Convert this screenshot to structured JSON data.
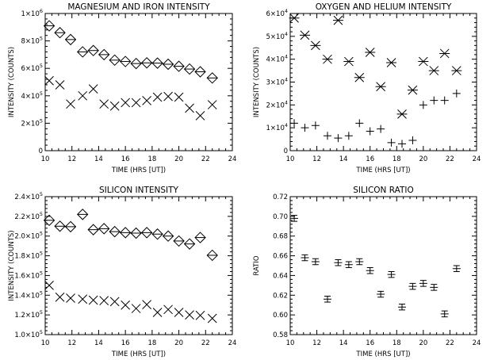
{
  "chart_data": [
    {
      "type": "scatter",
      "title": "MAGNESIUM AND IRON INTENSITY",
      "xlabel": "TIME (HRS [UT])",
      "ylabel": "INTENSITY (COUNTS)",
      "xlim": [
        10,
        24
      ],
      "ylim": [
        0,
        1000000
      ],
      "xticks": [
        "10",
        "12",
        "14",
        "16",
        "18",
        "20",
        "22",
        "24"
      ],
      "yticks": [
        "0",
        "2×10",
        "4×10",
        "6×10",
        "8×10",
        "1×10"
      ],
      "ytick_exponents": [
        "",
        "5",
        "5",
        "5",
        "5",
        "6"
      ],
      "series": [
        {
          "marker": "diamond",
          "x": [
            10.3,
            11.1,
            11.9,
            12.8,
            13.6,
            14.4,
            15.2,
            16.0,
            16.8,
            17.6,
            18.4,
            19.2,
            20.0,
            20.8,
            21.6,
            22.5
          ],
          "y": [
            910000,
            860000,
            810000,
            720000,
            730000,
            700000,
            660000,
            650000,
            635000,
            640000,
            638000,
            630000,
            615000,
            595000,
            575000,
            530000
          ]
        },
        {
          "marker": "x",
          "x": [
            10.3,
            11.1,
            11.9,
            12.8,
            13.6,
            14.4,
            15.2,
            16.0,
            16.8,
            17.6,
            18.4,
            19.2,
            20.0,
            20.8,
            21.6,
            22.5
          ],
          "y": [
            510000,
            480000,
            340000,
            400000,
            450000,
            340000,
            325000,
            350000,
            350000,
            365000,
            390000,
            395000,
            390000,
            310000,
            255000,
            335000
          ]
        }
      ]
    },
    {
      "type": "scatter",
      "title": "OXYGEN AND HELIUM INTENSITY",
      "xlabel": "TIME (HRS [UT])",
      "ylabel": "INTENSITY (COUNTS)",
      "xlim": [
        10,
        24
      ],
      "ylim": [
        0,
        60000
      ],
      "xticks": [
        "10",
        "12",
        "14",
        "16",
        "18",
        "20",
        "22",
        "24"
      ],
      "yticks": [
        "0",
        "1×10",
        "2×10",
        "3×10",
        "4×10",
        "5×10",
        "6×10"
      ],
      "ytick_exponents": [
        "",
        "4",
        "4",
        "4",
        "4",
        "4",
        "4"
      ],
      "series": [
        {
          "marker": "asterisk",
          "x": [
            10.3,
            11.1,
            11.9,
            12.8,
            13.6,
            14.4,
            15.2,
            16.0,
            16.8,
            17.6,
            18.4,
            19.2,
            20.0,
            20.8,
            21.6,
            22.5
          ],
          "y": [
            58000,
            50500,
            46000,
            40000,
            57000,
            39000,
            32000,
            43000,
            28000,
            38500,
            16000,
            26500,
            39000,
            35000,
            42500,
            35000
          ]
        },
        {
          "marker": "plus",
          "x": [
            10.3,
            11.1,
            11.9,
            12.8,
            13.6,
            14.4,
            15.2,
            16.0,
            16.8,
            17.6,
            18.4,
            19.2,
            20.0,
            20.8,
            21.6,
            22.5
          ],
          "y": [
            12000,
            10000,
            11000,
            6500,
            5500,
            6500,
            12000,
            8500,
            9500,
            3500,
            3000,
            4500,
            20000,
            22000,
            22000,
            25000
          ]
        }
      ]
    },
    {
      "type": "scatter",
      "title": "SILICON INTENSITY",
      "xlabel": "TIME (HRS [UT])",
      "ylabel": "INTENSITY (COUNTS)",
      "xlim": [
        10,
        24
      ],
      "ylim": [
        100000,
        240000
      ],
      "xticks": [
        "10",
        "12",
        "14",
        "16",
        "18",
        "20",
        "22",
        "24"
      ],
      "yticks": [
        "1.0×10",
        "1.2×10",
        "1.4×10",
        "1.6×10",
        "1.8×10",
        "2.0×10",
        "2.2×10",
        "2.4×10"
      ],
      "ytick_exponents": [
        "5",
        "5",
        "5",
        "5",
        "5",
        "5",
        "5",
        "5"
      ],
      "series": [
        {
          "marker": "diamond",
          "x": [
            10.3,
            11.1,
            11.9,
            12.8,
            13.6,
            14.4,
            15.2,
            16.0,
            16.8,
            17.6,
            18.4,
            19.2,
            20.0,
            20.8,
            21.6,
            22.5
          ],
          "y": [
            216000,
            210000,
            209500,
            222000,
            206500,
            207500,
            204500,
            203500,
            203000,
            203500,
            202000,
            200000,
            195000,
            192000,
            198500,
            180500
          ]
        },
        {
          "marker": "x",
          "x": [
            10.3,
            11.1,
            11.9,
            12.8,
            13.6,
            14.4,
            15.2,
            16.0,
            16.8,
            17.6,
            18.4,
            19.2,
            20.0,
            20.8,
            21.6,
            22.5
          ],
          "y": [
            150000,
            138000,
            137000,
            136000,
            135000,
            134500,
            133500,
            130000,
            126500,
            130500,
            122500,
            125500,
            122500,
            120000,
            119500,
            116500
          ]
        }
      ]
    },
    {
      "type": "scatter",
      "title": "SILICON RATIO",
      "xlabel": "TIME (HRS [UT])",
      "ylabel": "RATIO",
      "xlim": [
        10,
        24
      ],
      "ylim": [
        0.58,
        0.72
      ],
      "xticks": [
        "10",
        "12",
        "14",
        "16",
        "18",
        "20",
        "22",
        "24"
      ],
      "yticks": [
        "0.58",
        "0.60",
        "0.62",
        "0.64",
        "0.66",
        "0.68",
        "0.70",
        "0.72"
      ],
      "ytick_exponents": [
        "",
        "",
        "",
        "",
        "",
        "",
        "",
        ""
      ],
      "series": [
        {
          "marker": "errorbar",
          "x": [
            10.3,
            11.1,
            11.9,
            12.8,
            13.6,
            14.4,
            15.2,
            16.0,
            16.8,
            17.6,
            18.4,
            19.2,
            20.0,
            20.8,
            21.6,
            22.5
          ],
          "y": [
            0.698,
            0.658,
            0.654,
            0.616,
            0.653,
            0.651,
            0.654,
            0.645,
            0.621,
            0.641,
            0.608,
            0.629,
            0.632,
            0.628,
            0.601,
            0.647
          ],
          "err": [
            0.003,
            0.003,
            0.003,
            0.003,
            0.003,
            0.003,
            0.003,
            0.003,
            0.003,
            0.003,
            0.003,
            0.003,
            0.003,
            0.003,
            0.003,
            0.003
          ]
        }
      ]
    }
  ]
}
